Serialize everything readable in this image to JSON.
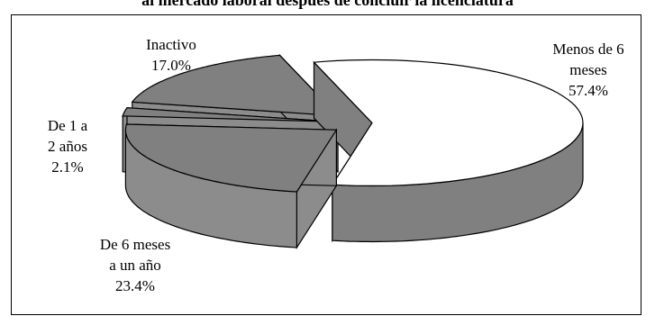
{
  "chart_data": {
    "type": "pie",
    "title": "al mercado laboral después de concluir la licenciatura",
    "three_d": true,
    "exploded": true,
    "slices": [
      {
        "label": "Menos de 6 meses",
        "label_lines": [
          "Menos de 6",
          "meses"
        ],
        "value": 57.4,
        "value_text": "57.4%",
        "color": "#ffffff"
      },
      {
        "label": "De 6 meses a un año",
        "label_lines": [
          "De 6 meses",
          "a un año"
        ],
        "value": 23.4,
        "value_text": "23.4%",
        "color": "#808080"
      },
      {
        "label": "De 1 a 2 años",
        "label_lines": [
          "De 1 a",
          "2 años"
        ],
        "value": 2.1,
        "value_text": "2.1%",
        "color": "#808080"
      },
      {
        "label": "Inactivo",
        "label_lines": [
          "Inactivo"
        ],
        "value": 17.0,
        "value_text": "17.0%",
        "color": "#808080"
      }
    ]
  }
}
